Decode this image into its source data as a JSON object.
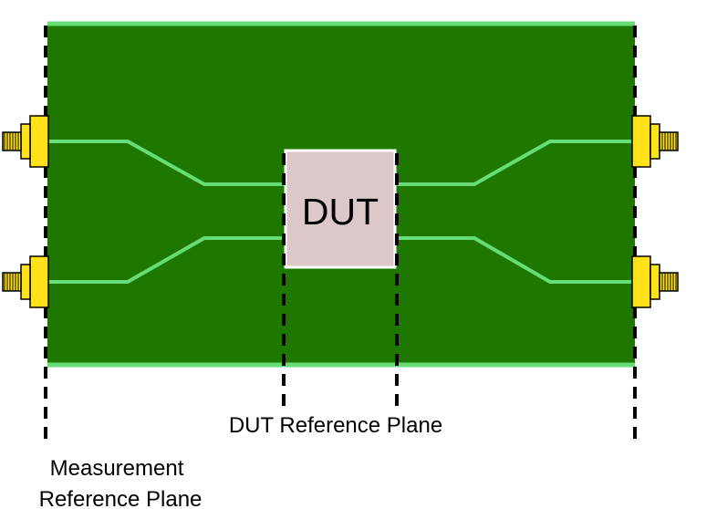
{
  "dut_label": "DUT",
  "dut_reference_plane_label": "DUT Reference Plane",
  "measurement_reference_plane_label": [
    "Measurement",
    "Reference Plane"
  ],
  "colors": {
    "board": "#1e7800",
    "board_edge": "#66dd77",
    "trace": "#66dd77",
    "dut_fill": "#dcc8c8",
    "connector": "#ffe21a",
    "connector_outline": "#000000",
    "reference_plane": "#000000"
  },
  "icons": {
    "connector": "sma-edge-connector-icon"
  }
}
